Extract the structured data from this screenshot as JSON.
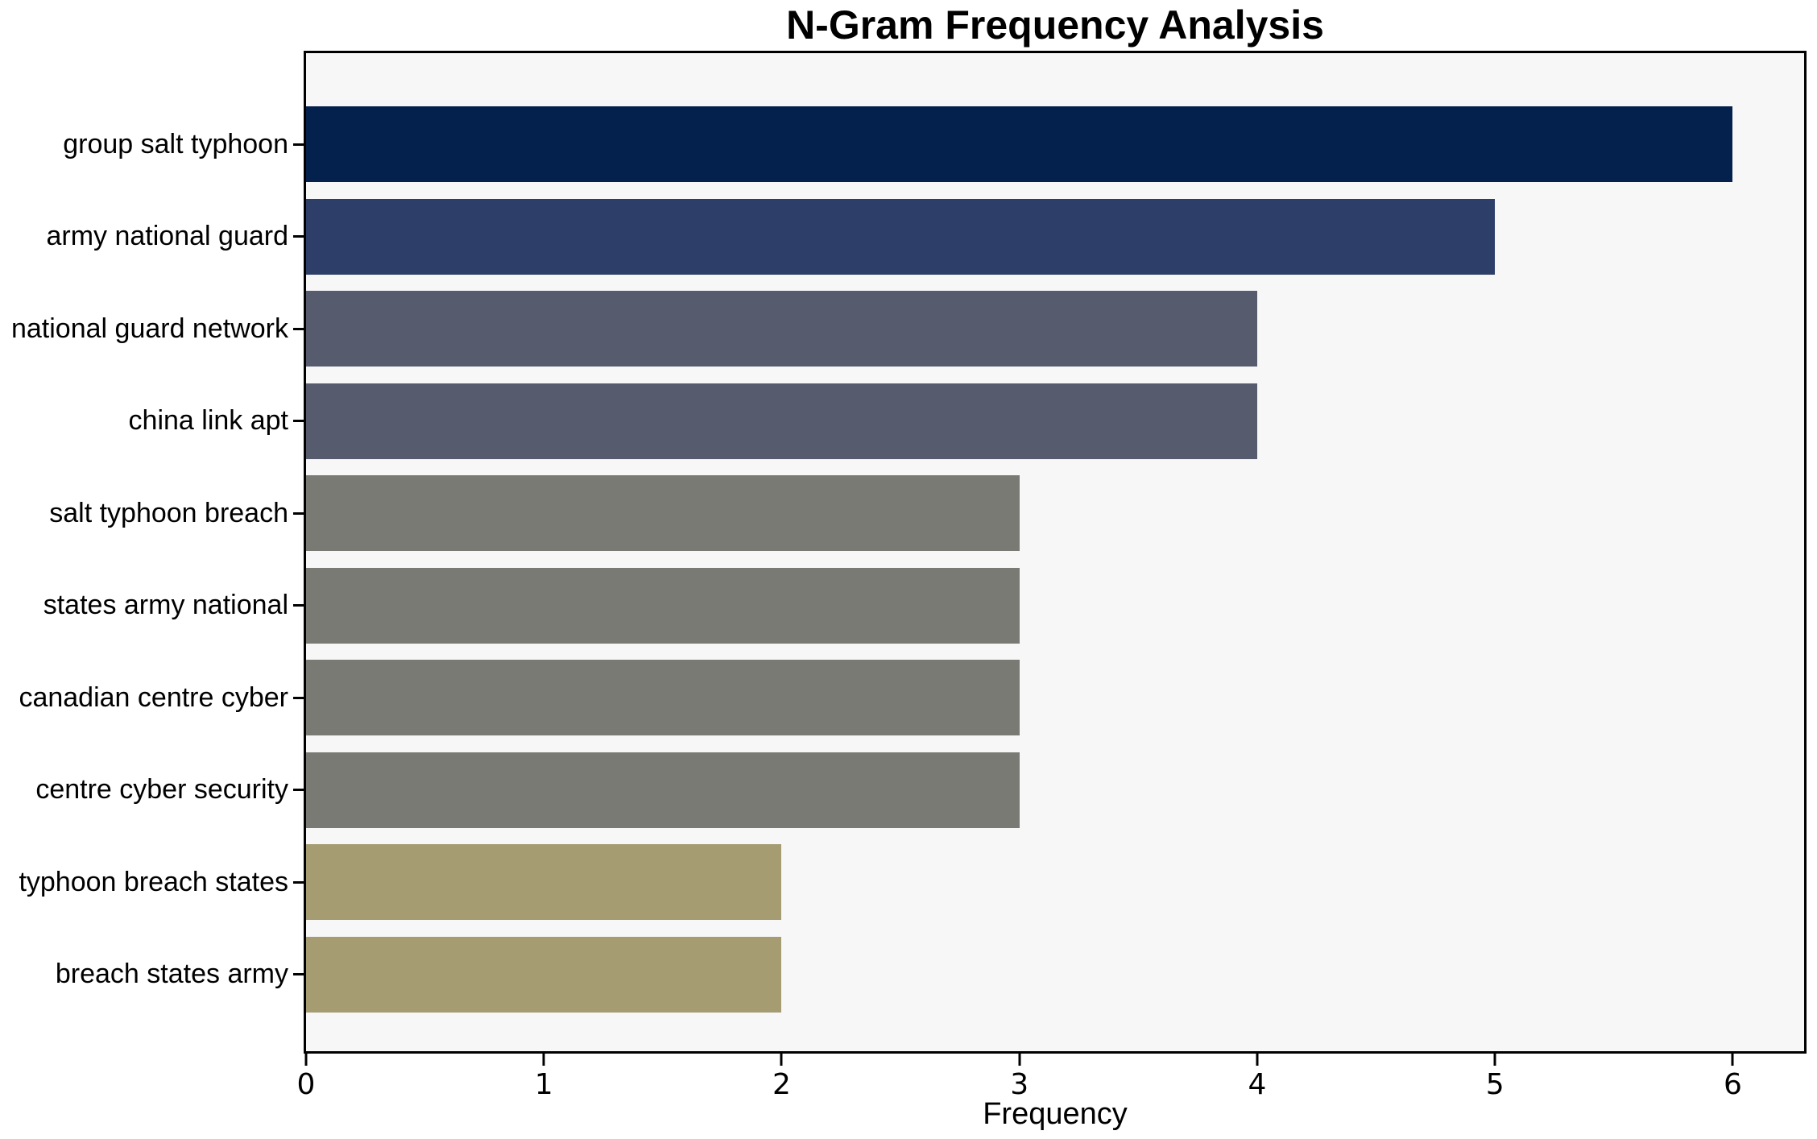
{
  "chart_data": {
    "type": "bar",
    "orientation": "horizontal",
    "title": "N-Gram Frequency Analysis",
    "xlabel": "Frequency",
    "ylabel": "",
    "categories": [
      "group salt typhoon",
      "army national guard",
      "national guard network",
      "china link apt",
      "salt typhoon breach",
      "states army national",
      "canadian centre cyber",
      "centre cyber security",
      "typhoon breach states",
      "breach states army"
    ],
    "values": [
      6,
      5,
      4,
      4,
      3,
      3,
      3,
      3,
      2,
      2
    ],
    "xlim": [
      0,
      6.3
    ],
    "x_ticks": [
      0,
      1,
      2,
      3,
      4,
      5,
      6
    ],
    "grid": false,
    "colormap": "cividis",
    "bar_colors": [
      "#03214c",
      "#2d3e69",
      "#565c6e",
      "#565c6e",
      "#7a7a74",
      "#7a7a74",
      "#7a7a74",
      "#7a7a74",
      "#a59c71",
      "#a59c71"
    ],
    "plot_bg": "#f7f7f8",
    "figure_bg": "#ffffff",
    "axis_color": "#000000",
    "text_color": "#000000"
  }
}
